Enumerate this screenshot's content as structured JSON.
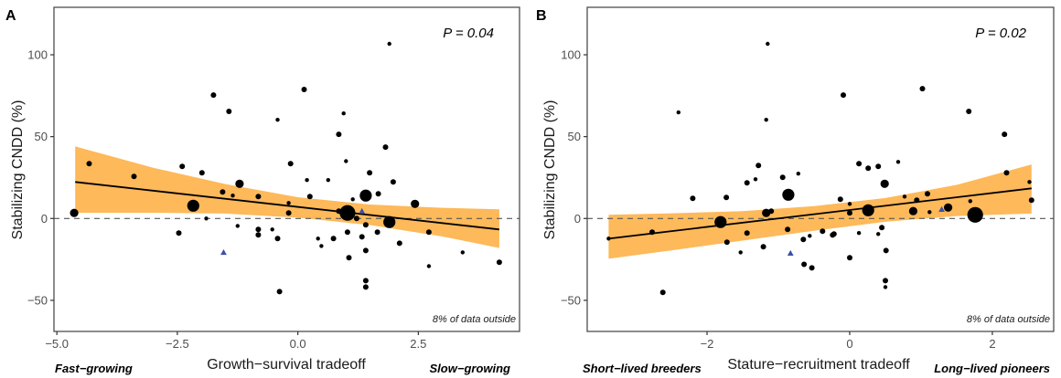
{
  "chart_data": [
    {
      "type": "scatter",
      "panel_label": "A",
      "annotation_p": "P = 0.04",
      "annotation_outside": "8% of data outside",
      "xlabel": "Growth−survival tradeoff",
      "ylabel": "Stabilizing CNDD (%)",
      "x_end_labels": {
        "left": "Fast−growing",
        "right": "Slow−growing"
      },
      "xlim": [
        -5.06,
        4.6
      ],
      "ylim": [
        -69,
        129
      ],
      "x_ticks": [
        {
          "v": -5.0,
          "label": "−5.0"
        },
        {
          "v": -2.5,
          "label": "−2.5"
        },
        {
          "v": 0.0,
          "label": "0.0"
        },
        {
          "v": 2.5,
          "label": "2.5"
        }
      ],
      "y_ticks": [
        {
          "v": -50,
          "label": "−50"
        },
        {
          "v": 0,
          "label": "0"
        },
        {
          "v": 50,
          "label": "50"
        },
        {
          "v": 100,
          "label": "100"
        }
      ],
      "reference_line": {
        "y": 0,
        "style": "dashed"
      },
      "fit": {
        "x": [
          -4.62,
          4.18
        ],
        "y": [
          22.3,
          -6.7
        ]
      },
      "ci_band": {
        "x": [
          -4.62,
          -3.0,
          -1.5,
          0.0,
          1.5,
          3.0,
          4.18
        ],
        "upper": [
          44.0,
          31.0,
          21.0,
          13.0,
          8.5,
          6.5,
          5.6
        ],
        "lower": [
          3.5,
          3.5,
          3.0,
          0.5,
          -4.0,
          -11.0,
          -18.0
        ]
      },
      "colors": {
        "band": "#FDB95A",
        "point": "#000000",
        "triangle": "#3B4FA8"
      },
      "points": [
        {
          "x": -4.64,
          "y": 3.4,
          "size": "m"
        },
        {
          "x": -4.33,
          "y": 33.5,
          "size": "s"
        },
        {
          "x": -3.4,
          "y": 25.7,
          "size": "s"
        },
        {
          "x": -2.4,
          "y": 31.8,
          "size": "s"
        },
        {
          "x": -2.47,
          "y": -8.9,
          "size": "s"
        },
        {
          "x": -2.17,
          "y": 7.8,
          "size": "l"
        },
        {
          "x": -1.99,
          "y": 27.9,
          "size": "s"
        },
        {
          "x": -1.9,
          "y": 0.0,
          "size": "xs"
        },
        {
          "x": -1.75,
          "y": 75.4,
          "size": "s"
        },
        {
          "x": -1.43,
          "y": 65.4,
          "size": "s"
        },
        {
          "x": -1.56,
          "y": 16.2,
          "size": "s"
        },
        {
          "x": -1.21,
          "y": 21.2,
          "size": "m"
        },
        {
          "x": -1.35,
          "y": 14.0,
          "size": "xs"
        },
        {
          "x": -1.25,
          "y": -4.5,
          "size": "xs"
        },
        {
          "x": -0.82,
          "y": 13.4,
          "size": "s"
        },
        {
          "x": -0.82,
          "y": -6.7,
          "size": "s"
        },
        {
          "x": -0.82,
          "y": -10.0,
          "size": "s"
        },
        {
          "x": -0.53,
          "y": -6.7,
          "size": "xs"
        },
        {
          "x": -0.42,
          "y": -12.3,
          "size": "s"
        },
        {
          "x": -0.42,
          "y": 60.3,
          "size": "xs"
        },
        {
          "x": -0.15,
          "y": 33.5,
          "size": "s"
        },
        {
          "x": -0.19,
          "y": 3.4,
          "size": "s"
        },
        {
          "x": -0.19,
          "y": 9.5,
          "size": "xs"
        },
        {
          "x": -0.38,
          "y": -44.7,
          "size": "s"
        },
        {
          "x": 0.13,
          "y": 78.8,
          "size": "s"
        },
        {
          "x": 0.19,
          "y": 23.5,
          "size": "xs"
        },
        {
          "x": 0.25,
          "y": 13.4,
          "size": "s"
        },
        {
          "x": 0.42,
          "y": -12.3,
          "size": "xs"
        },
        {
          "x": 0.49,
          "y": -16.8,
          "size": "xs"
        },
        {
          "x": 0.63,
          "y": 23.5,
          "size": "xs"
        },
        {
          "x": 0.74,
          "y": -12.3,
          "size": "s"
        },
        {
          "x": 0.85,
          "y": 4.5,
          "size": "s"
        },
        {
          "x": 0.85,
          "y": 51.4,
          "size": "s"
        },
        {
          "x": 0.95,
          "y": 64.2,
          "size": "xs"
        },
        {
          "x": 0.95,
          "y": 3.9,
          "size": "m"
        },
        {
          "x": 1.03,
          "y": 3.4,
          "size": "xl"
        },
        {
          "x": 1.0,
          "y": 35.0,
          "size": "xs"
        },
        {
          "x": 1.03,
          "y": -8.4,
          "size": "s"
        },
        {
          "x": 1.06,
          "y": -24.0,
          "size": "s"
        },
        {
          "x": 1.14,
          "y": 11.7,
          "size": "xs"
        },
        {
          "x": 1.22,
          "y": 0.0,
          "size": "s"
        },
        {
          "x": 1.33,
          "y": -11.2,
          "size": "s"
        },
        {
          "x": 1.41,
          "y": 14.0,
          "size": "l"
        },
        {
          "x": 1.41,
          "y": -3.9,
          "size": "s"
        },
        {
          "x": 1.41,
          "y": -19.6,
          "size": "s"
        },
        {
          "x": 1.41,
          "y": -38.0,
          "size": "s"
        },
        {
          "x": 1.41,
          "y": -41.9,
          "size": "s"
        },
        {
          "x": 1.49,
          "y": 27.9,
          "size": "s"
        },
        {
          "x": 1.67,
          "y": 15.1,
          "size": "s"
        },
        {
          "x": 1.65,
          "y": -8.4,
          "size": "s"
        },
        {
          "x": 1.82,
          "y": 43.6,
          "size": "s"
        },
        {
          "x": 1.9,
          "y": 106.7,
          "size": "xs"
        },
        {
          "x": 1.9,
          "y": -2.2,
          "size": "l"
        },
        {
          "x": 1.98,
          "y": 22.3,
          "size": "s"
        },
        {
          "x": 2.11,
          "y": -15.1,
          "size": "s"
        },
        {
          "x": 2.43,
          "y": 8.9,
          "size": "m"
        },
        {
          "x": 2.72,
          "y": -8.4,
          "size": "s"
        },
        {
          "x": 2.72,
          "y": -29.1,
          "size": "xs"
        },
        {
          "x": 3.42,
          "y": -20.7,
          "size": "xs"
        },
        {
          "x": 4.18,
          "y": -26.8,
          "size": "s"
        }
      ],
      "triangles": [
        {
          "x": -1.54,
          "y": -20.7
        },
        {
          "x": 1.33,
          "y": 4.5
        }
      ]
    },
    {
      "type": "scatter",
      "panel_label": "B",
      "annotation_p": "P = 0.02",
      "annotation_outside": "8% of data outside",
      "xlabel": "Stature−recruitment tradeoff",
      "ylabel": "Stabilizing CNDD (%)",
      "x_end_labels": {
        "left": "Short−lived breeders",
        "right": "Long−lived pioneers"
      },
      "xlim": [
        -3.68,
        2.86
      ],
      "ylim": [
        -69,
        129
      ],
      "x_ticks": [
        {
          "v": -2,
          "label": "−2"
        },
        {
          "v": 0,
          "label": "0"
        },
        {
          "v": 2,
          "label": "2"
        }
      ],
      "y_ticks": [
        {
          "v": -50,
          "label": "−50"
        },
        {
          "v": 0,
          "label": "0"
        },
        {
          "v": 50,
          "label": "50"
        },
        {
          "v": 100,
          "label": "100"
        }
      ],
      "reference_line": {
        "y": 0,
        "style": "dashed"
      },
      "fit": {
        "x": [
          -3.38,
          2.55
        ],
        "y": [
          -12.3,
          18.4
        ]
      },
      "ci_band": {
        "x": [
          -3.38,
          -2.5,
          -1.5,
          -0.5,
          0.5,
          1.5,
          2.55
        ],
        "upper": [
          2.2,
          3.2,
          4.5,
          7.5,
          12.5,
          20.5,
          33.0
        ],
        "lower": [
          -24.6,
          -19.5,
          -13.5,
          -7.5,
          -2.0,
          1.5,
          3.0
        ]
      },
      "colors": {
        "band": "#FDB95A",
        "point": "#000000",
        "triangle": "#3B4FA8"
      },
      "points": [
        {
          "x": -3.38,
          "y": -12.3,
          "size": "xs"
        },
        {
          "x": -2.77,
          "y": -8.4,
          "size": "s"
        },
        {
          "x": -2.62,
          "y": -45.2,
          "size": "s"
        },
        {
          "x": -2.4,
          "y": 64.8,
          "size": "xs"
        },
        {
          "x": -2.2,
          "y": 12.3,
          "size": "s"
        },
        {
          "x": -1.81,
          "y": -2.2,
          "size": "l"
        },
        {
          "x": -1.73,
          "y": 12.8,
          "size": "s"
        },
        {
          "x": -1.72,
          "y": -14.5,
          "size": "s"
        },
        {
          "x": -1.53,
          "y": -20.7,
          "size": "xs"
        },
        {
          "x": -1.44,
          "y": 21.8,
          "size": "s"
        },
        {
          "x": -1.44,
          "y": -8.9,
          "size": "s"
        },
        {
          "x": -1.28,
          "y": 32.4,
          "size": "s"
        },
        {
          "x": -1.32,
          "y": 24.0,
          "size": "xs"
        },
        {
          "x": -1.15,
          "y": 106.7,
          "size": "xs"
        },
        {
          "x": -1.17,
          "y": 60.3,
          "size": "xs"
        },
        {
          "x": -1.17,
          "y": 3.4,
          "size": "m"
        },
        {
          "x": -1.1,
          "y": 4.5,
          "size": "s"
        },
        {
          "x": -1.21,
          "y": -17.3,
          "size": "s"
        },
        {
          "x": -0.94,
          "y": 25.1,
          "size": "s"
        },
        {
          "x": -0.86,
          "y": 14.5,
          "size": "l"
        },
        {
          "x": -0.87,
          "y": -6.7,
          "size": "s"
        },
        {
          "x": -0.72,
          "y": 27.4,
          "size": "xs"
        },
        {
          "x": -0.65,
          "y": -12.8,
          "size": "s"
        },
        {
          "x": -0.64,
          "y": -28.0,
          "size": "s"
        },
        {
          "x": -0.56,
          "y": -10.6,
          "size": "xs"
        },
        {
          "x": -0.53,
          "y": -30.2,
          "size": "s"
        },
        {
          "x": -0.38,
          "y": -7.8,
          "size": "s"
        },
        {
          "x": -0.24,
          "y": -10.1,
          "size": "s"
        },
        {
          "x": -0.22,
          "y": -9.5,
          "size": "s"
        },
        {
          "x": -0.09,
          "y": 75.4,
          "size": "s"
        },
        {
          "x": -0.13,
          "y": 11.7,
          "size": "s"
        },
        {
          "x": 0.0,
          "y": 8.9,
          "size": "xs"
        },
        {
          "x": 0.0,
          "y": -24.0,
          "size": "s"
        },
        {
          "x": 0.0,
          "y": 3.4,
          "size": "s"
        },
        {
          "x": 0.13,
          "y": 33.5,
          "size": "s"
        },
        {
          "x": 0.13,
          "y": -8.9,
          "size": "xs"
        },
        {
          "x": 0.26,
          "y": 30.7,
          "size": "s"
        },
        {
          "x": 0.26,
          "y": 5.0,
          "size": "l"
        },
        {
          "x": 0.4,
          "y": 31.8,
          "size": "s"
        },
        {
          "x": 0.49,
          "y": 21.2,
          "size": "m"
        },
        {
          "x": 0.45,
          "y": -5.6,
          "size": "s"
        },
        {
          "x": 0.4,
          "y": -9.5,
          "size": "xs"
        },
        {
          "x": 0.51,
          "y": -19.6,
          "size": "s"
        },
        {
          "x": 0.5,
          "y": -38.0,
          "size": "s"
        },
        {
          "x": 0.5,
          "y": -41.9,
          "size": "xs"
        },
        {
          "x": 0.68,
          "y": 34.6,
          "size": "xs"
        },
        {
          "x": 0.77,
          "y": 13.4,
          "size": "xs"
        },
        {
          "x": 0.89,
          "y": 4.5,
          "size": "m"
        },
        {
          "x": 0.94,
          "y": 11.2,
          "size": "s"
        },
        {
          "x": 1.02,
          "y": 79.3,
          "size": "s"
        },
        {
          "x": 1.09,
          "y": 15.1,
          "size": "s"
        },
        {
          "x": 1.12,
          "y": 3.9,
          "size": "xs"
        },
        {
          "x": 1.38,
          "y": 6.7,
          "size": "m"
        },
        {
          "x": 1.67,
          "y": 65.4,
          "size": "s"
        },
        {
          "x": 1.69,
          "y": 10.6,
          "size": "xs"
        },
        {
          "x": 1.76,
          "y": 2.2,
          "size": "xl"
        },
        {
          "x": 2.17,
          "y": 51.4,
          "size": "s"
        },
        {
          "x": 2.2,
          "y": 27.9,
          "size": "s"
        },
        {
          "x": 2.52,
          "y": 22.3,
          "size": "xs"
        },
        {
          "x": 2.55,
          "y": 11.2,
          "size": "s"
        }
      ],
      "triangles": [
        {
          "x": -0.83,
          "y": -21.2
        },
        {
          "x": 1.29,
          "y": 5.6
        }
      ]
    }
  ]
}
